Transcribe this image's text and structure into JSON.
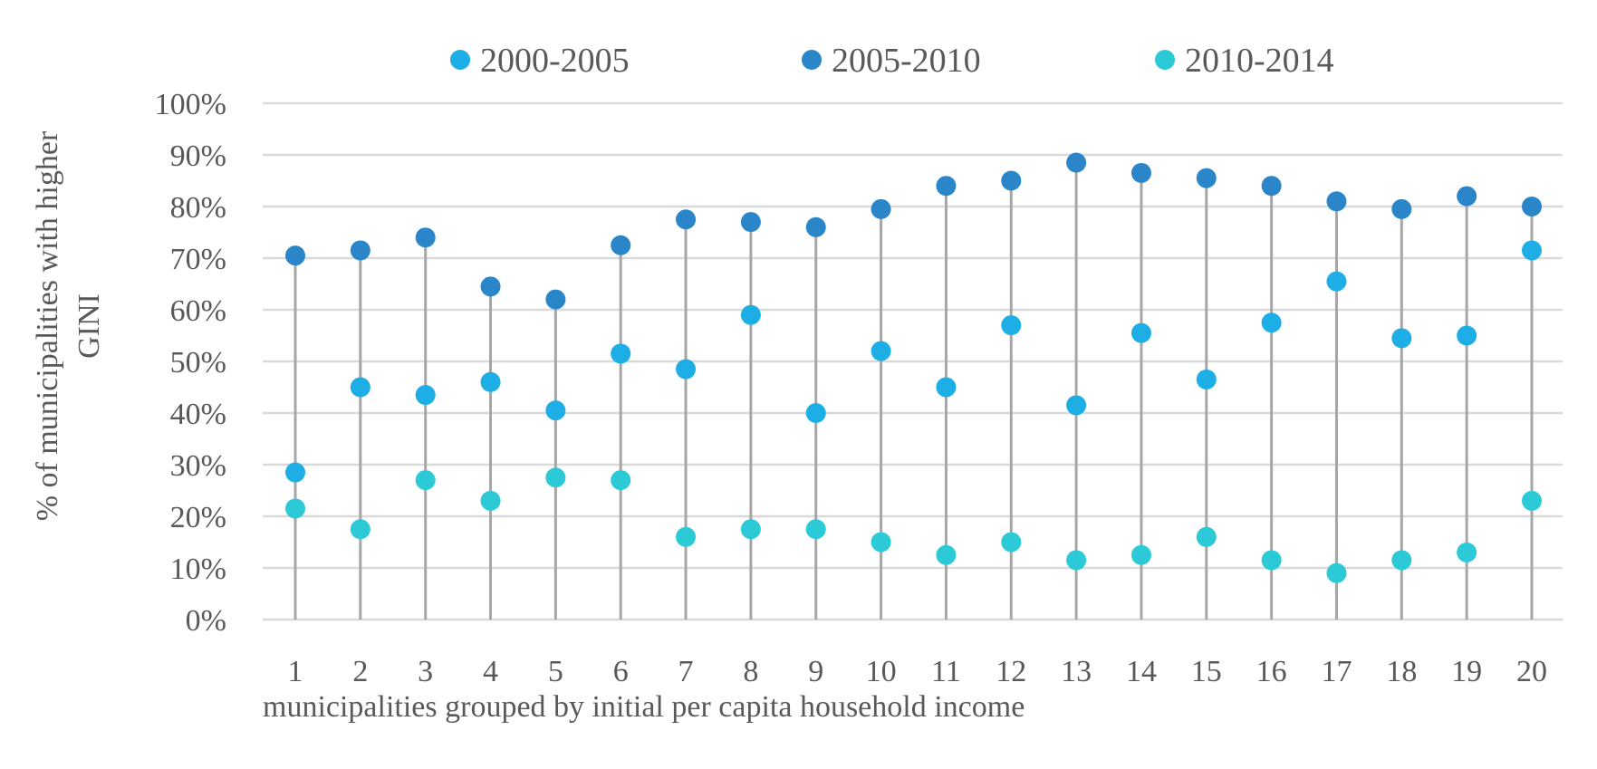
{
  "chart_data": {
    "type": "scatter",
    "xlabel": "municipalities grouped by initial per capita household income",
    "ylabel": "% of municipalities with higher GINI",
    "ylim": [
      0,
      100
    ],
    "y_ticks": [
      "0%",
      "10%",
      "20%",
      "30%",
      "40%",
      "50%",
      "60%",
      "70%",
      "80%",
      "90%",
      "100%"
    ],
    "categories": [
      "1",
      "2",
      "3",
      "4",
      "5",
      "6",
      "7",
      "8",
      "9",
      "10",
      "11",
      "12",
      "13",
      "14",
      "15",
      "16",
      "17",
      "18",
      "19",
      "20"
    ],
    "grid": true,
    "legend_position": "top",
    "series": [
      {
        "name": "2000-2005",
        "color": "#1EAEE6",
        "values": [
          28.5,
          45,
          43.5,
          46,
          40.5,
          51.5,
          48.5,
          59,
          40,
          52,
          45,
          57,
          41.5,
          55.5,
          46.5,
          57.5,
          65.5,
          54.5,
          55,
          71.5
        ]
      },
      {
        "name": "2005-2010",
        "color": "#2A86C8",
        "values": [
          70.5,
          71.5,
          74,
          64.5,
          62,
          72.5,
          77.5,
          77,
          76,
          79.5,
          84,
          85,
          88.5,
          86.5,
          85.5,
          84,
          81,
          79.5,
          82,
          80
        ]
      },
      {
        "name": "2010-2014",
        "color": "#2CCAD6",
        "values": [
          21.5,
          17.5,
          27,
          23,
          27.5,
          27,
          16,
          17.5,
          17.5,
          15,
          12.5,
          15,
          11.5,
          12.5,
          16,
          11.5,
          9,
          11.5,
          13,
          23
        ]
      }
    ]
  }
}
